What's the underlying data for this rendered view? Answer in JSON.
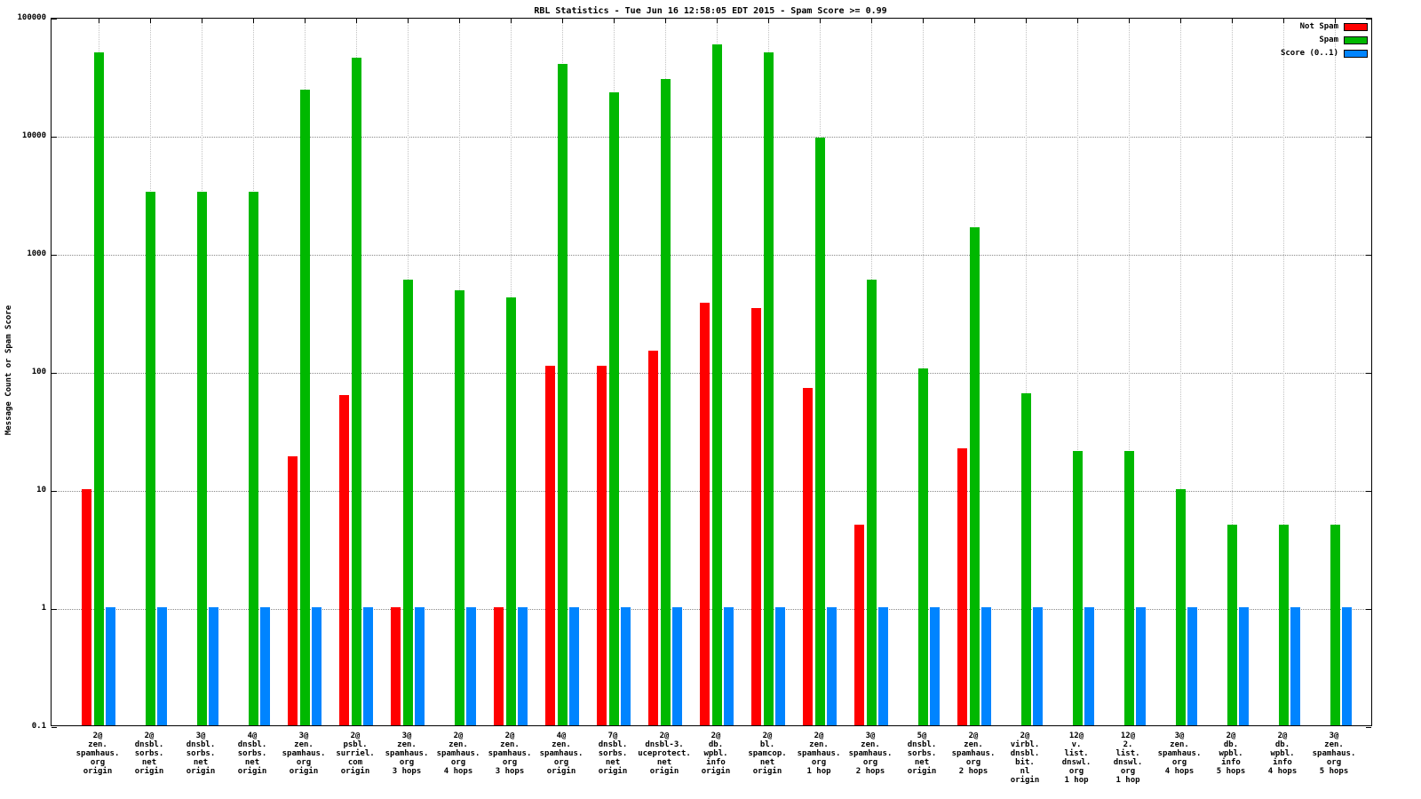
{
  "legend": [
    {
      "label": "Not Spam",
      "color": "#ff0000"
    },
    {
      "label": "Spam",
      "color": "#00b800"
    },
    {
      "label": "Score (0..1)",
      "color": "#0084ff"
    }
  ],
  "chart_data": {
    "type": "bar",
    "title": "RBL Statistics - Tue Jun 16 12:58:05 EDT 2015 - Spam Score >= 0.99",
    "ylabel": "Message Count or Spam Score",
    "xlabel": "",
    "y_scale": "log10",
    "ylim": [
      0.1,
      100000
    ],
    "y_ticks": [
      "100000",
      "10000",
      "1000",
      "100",
      "10",
      "1",
      "0.1"
    ],
    "grid": true,
    "legend_position": "top-right",
    "categories": [
      [
        "2@",
        "zen.",
        "spamhaus.",
        "org",
        "origin"
      ],
      [
        "2@",
        "dnsbl.",
        "sorbs.",
        "net",
        "origin"
      ],
      [
        "3@",
        "dnsbl.",
        "sorbs.",
        "net",
        "origin"
      ],
      [
        "4@",
        "dnsbl.",
        "sorbs.",
        "net",
        "origin"
      ],
      [
        "3@",
        "zen.",
        "spamhaus.",
        "org",
        "origin"
      ],
      [
        "2@",
        "psbl.",
        "surriel.",
        "com",
        "origin"
      ],
      [
        "3@",
        "zen.",
        "spamhaus.",
        "org",
        "3 hops"
      ],
      [
        "2@",
        "zen.",
        "spamhaus.",
        "org",
        "4 hops"
      ],
      [
        "2@",
        "zen.",
        "spamhaus.",
        "org",
        "3 hops"
      ],
      [
        "4@",
        "zen.",
        "spamhaus.",
        "org",
        "origin"
      ],
      [
        "7@",
        "dnsbl.",
        "sorbs.",
        "net",
        "origin"
      ],
      [
        "2@",
        "dnsbl-3.",
        "uceprotect.",
        "net",
        "origin"
      ],
      [
        "2@",
        "db.",
        "wpbl.",
        "info",
        "origin"
      ],
      [
        "2@",
        "bl.",
        "spamcop.",
        "net",
        "origin"
      ],
      [
        "2@",
        "zen.",
        "spamhaus.",
        "org",
        "1 hop"
      ],
      [
        "3@",
        "zen.",
        "spamhaus.",
        "org",
        "2 hops"
      ],
      [
        "5@",
        "dnsbl.",
        "sorbs.",
        "net",
        "origin"
      ],
      [
        "2@",
        "zen.",
        "spamhaus.",
        "org",
        "2 hops"
      ],
      [
        "2@",
        "virbl.",
        "dnsbl.",
        "bit.",
        "nl",
        "origin"
      ],
      [
        "12@",
        "v.",
        "list.",
        "dnswl.",
        "org",
        "1 hop"
      ],
      [
        "12@",
        "2.",
        "list.",
        "dnswl.",
        "org",
        "1 hop"
      ],
      [
        "3@",
        "zen.",
        "spamhaus.",
        "org",
        "4 hops"
      ],
      [
        "2@",
        "db.",
        "wpbl.",
        "info",
        "5 hops"
      ],
      [
        "2@",
        "db.",
        "wpbl.",
        "info",
        "4 hops"
      ],
      [
        "3@",
        "zen.",
        "spamhaus.",
        "org",
        "5 hops"
      ]
    ],
    "series": [
      {
        "name": "Not Spam",
        "color": "#ff0000",
        "values": [
          10,
          null,
          null,
          null,
          19,
          63,
          1,
          null,
          1,
          110,
          110,
          150,
          380,
          340,
          72,
          5,
          null,
          22,
          null,
          null,
          null,
          null,
          null,
          null,
          null
        ]
      },
      {
        "name": "Spam",
        "color": "#00b800",
        "values": [
          50000,
          3300,
          3300,
          3300,
          24000,
          45000,
          590,
          480,
          420,
          40000,
          23000,
          30000,
          58000,
          50000,
          9500,
          600,
          105,
          1650,
          65,
          21,
          21,
          10,
          5,
          5,
          5
        ]
      },
      {
        "name": "Score (0..1)",
        "color": "#0084ff",
        "values": [
          1,
          1,
          1,
          1,
          1,
          1,
          1,
          1,
          1,
          1,
          1,
          1,
          1,
          1,
          1,
          1,
          1,
          1,
          1,
          1,
          1,
          1,
          1,
          1,
          1
        ]
      }
    ]
  }
}
